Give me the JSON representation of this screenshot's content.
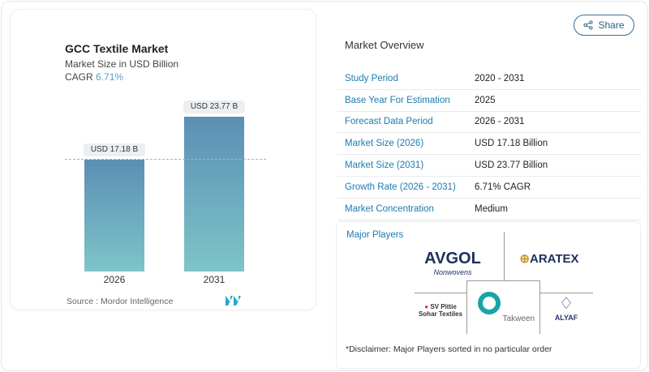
{
  "chart_data": {
    "type": "bar",
    "title": "GCC Textile Market",
    "subtitle": "Market Size in USD Billion",
    "cagr_label": "CAGR",
    "cagr_value": "6.71%",
    "categories": [
      "2026",
      "2031"
    ],
    "values": [
      17.18,
      23.77
    ],
    "data_labels": [
      "USD 17.18 B",
      "USD 23.77 B"
    ],
    "ylim": [
      0,
      23.77
    ],
    "colors": [
      "#5b8fb4",
      "#7ec4c8"
    ],
    "source": "Source :  Mordor Intelligence"
  },
  "share_label": "Share",
  "overview": {
    "title": "Market Overview",
    "rows": [
      {
        "label": "Study Period",
        "value": "2020 - 2031"
      },
      {
        "label": "Base Year For Estimation",
        "value": "2025"
      },
      {
        "label": "Forecast Data Period",
        "value": "2026 - 2031"
      },
      {
        "label": "Market Size (2026)",
        "value": "USD 17.18 Billion"
      },
      {
        "label": "Market Size (2031)",
        "value": "USD 23.77 Billion"
      },
      {
        "label": "Growth Rate (2026 - 2031)",
        "value": "6.71% CAGR"
      },
      {
        "label": "Market Concentration",
        "value": "Medium"
      }
    ]
  },
  "players": {
    "title": "Major Players",
    "logos": [
      "AVGOL",
      "Nonwovens",
      "ARATEX",
      "SV Pittie",
      "Sohar Textiles",
      "Takween",
      "ALYAF"
    ],
    "disclaimer": "*Disclaimer: Major Players sorted in no particular order"
  }
}
